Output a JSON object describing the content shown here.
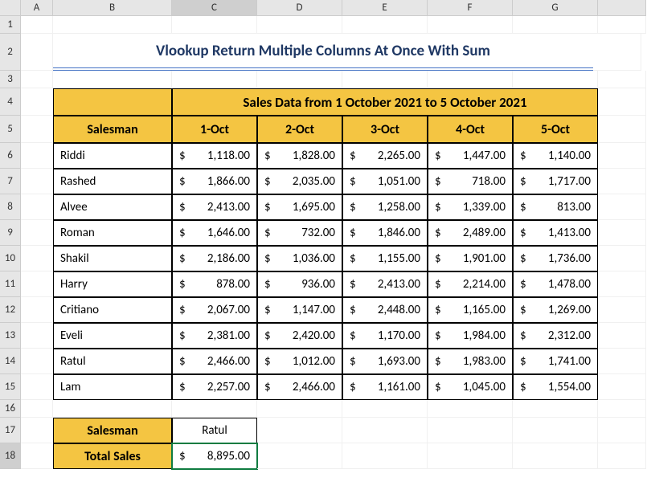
{
  "colors": {
    "header_fill": "#f4c542",
    "title_text": "#1f3864",
    "title_underline": "#4472c4",
    "grid_border": "#000000",
    "col_row_header_bg": "#e6e6e6",
    "active_ring": "#107c41"
  },
  "active_cell": "C18",
  "columns": [
    "A",
    "B",
    "C",
    "D",
    "E",
    "F",
    "G"
  ],
  "title": "Vlookup Return Multiple Columns At Once With Sum",
  "table": {
    "sub_title": "Sales Data from 1 October 2021 to 5 October 2021",
    "headers": [
      "Salesman",
      "1-Oct",
      "2-Oct",
      "3-Oct",
      "4-Oct",
      "5-Oct"
    ],
    "rows": [
      {
        "name": "Riddi",
        "vals": [
          "1,118.00",
          "1,828.00",
          "2,265.00",
          "1,447.00",
          "1,140.00"
        ]
      },
      {
        "name": "Rashed",
        "vals": [
          "1,866.00",
          "2,035.00",
          "1,051.00",
          "718.00",
          "1,717.00"
        ]
      },
      {
        "name": "Alvee",
        "vals": [
          "2,413.00",
          "1,695.00",
          "1,258.00",
          "1,339.00",
          "813.00"
        ]
      },
      {
        "name": "Roman",
        "vals": [
          "1,646.00",
          "732.00",
          "1,846.00",
          "2,489.00",
          "1,413.00"
        ]
      },
      {
        "name": "Shakil",
        "vals": [
          "2,186.00",
          "1,036.00",
          "1,155.00",
          "1,901.00",
          "1,736.00"
        ]
      },
      {
        "name": "Harry",
        "vals": [
          "878.00",
          "936.00",
          "2,413.00",
          "2,214.00",
          "1,478.00"
        ]
      },
      {
        "name": "Critiano",
        "vals": [
          "2,067.00",
          "1,147.00",
          "2,448.00",
          "1,165.00",
          "1,269.00"
        ]
      },
      {
        "name": "Eveli",
        "vals": [
          "2,381.00",
          "2,420.00",
          "1,170.00",
          "1,984.00",
          "2,312.00"
        ]
      },
      {
        "name": "Ratul",
        "vals": [
          "2,466.00",
          "1,012.00",
          "1,693.00",
          "1,983.00",
          "1,741.00"
        ]
      },
      {
        "name": "Lam",
        "vals": [
          "2,257.00",
          "2,466.00",
          "1,161.00",
          "1,045.00",
          "1,554.00"
        ]
      }
    ]
  },
  "summary": {
    "label_salesman": "Salesman",
    "value_salesman": "Ratul",
    "label_total": "Total Sales",
    "value_total": "8,895.00"
  },
  "currency_symbol": "$"
}
